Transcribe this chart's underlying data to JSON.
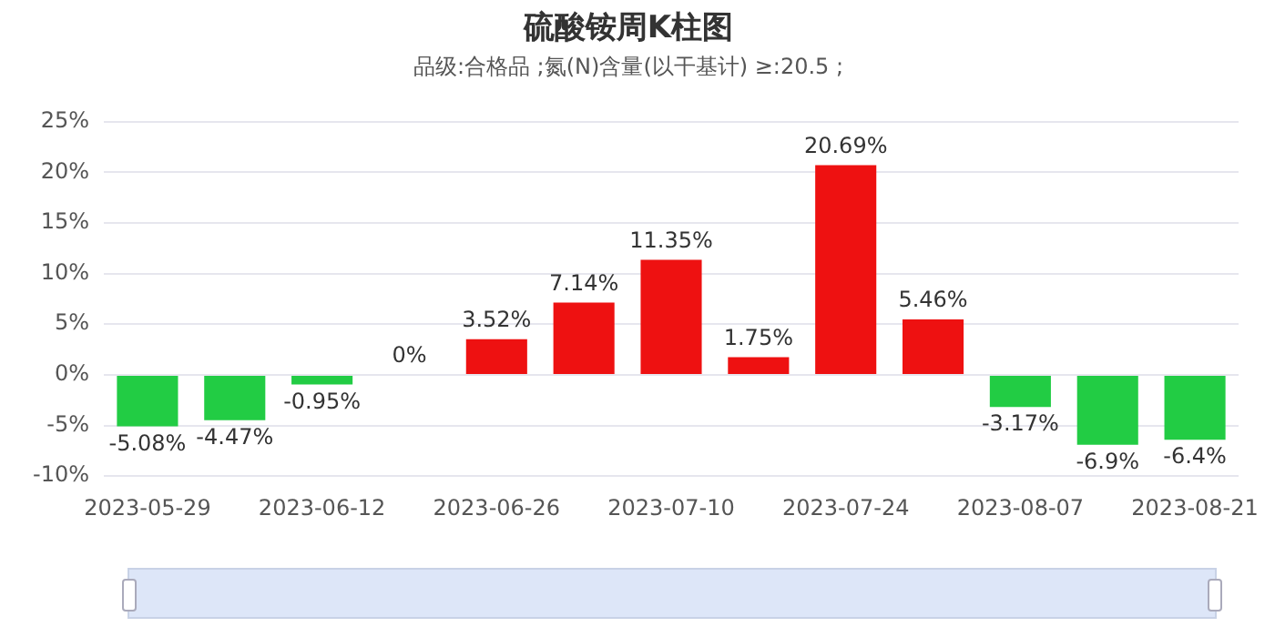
{
  "chart_data": {
    "type": "bar",
    "title": "硫酸铵周K柱图",
    "subtitle": "品级:合格品 ;氮(N)含量(以干基计) ≥:20.5 ;",
    "categories": [
      "2023-05-29",
      null,
      "2023-06-12",
      null,
      "2023-06-26",
      null,
      "2023-07-10",
      null,
      "2023-07-24",
      null,
      "2023-08-07",
      null,
      "2023-08-21"
    ],
    "values": [
      -5.08,
      -4.47,
      -0.95,
      0,
      3.52,
      7.14,
      11.35,
      1.75,
      20.69,
      5.46,
      -3.17,
      -6.9,
      -6.4
    ],
    "value_labels": [
      "-5.08%",
      "-4.47%",
      "-0.95%",
      "0%",
      "3.52%",
      "7.14%",
      "11.35%",
      "1.75%",
      "20.69%",
      "5.46%",
      "-3.17%",
      "-6.9%",
      "-6.4%"
    ],
    "colors": [
      "#22cc44",
      "#22cc44",
      "#22cc44",
      "#ee1111",
      "#ee1111",
      "#ee1111",
      "#ee1111",
      "#ee1111",
      "#ee1111",
      "#ee1111",
      "#22cc44",
      "#22cc44",
      "#22cc44"
    ],
    "ylim": [
      -10,
      25
    ],
    "yticks": [
      {
        "value": -10,
        "label": "-10%"
      },
      {
        "value": -5,
        "label": "-5%"
      },
      {
        "value": 0,
        "label": "0%"
      },
      {
        "value": 5,
        "label": "5%"
      },
      {
        "value": 10,
        "label": "10%"
      },
      {
        "value": 15,
        "label": "15%"
      },
      {
        "value": 20,
        "label": "20%"
      },
      {
        "value": 25,
        "label": "25%"
      }
    ],
    "grid": "y",
    "legend": false
  }
}
